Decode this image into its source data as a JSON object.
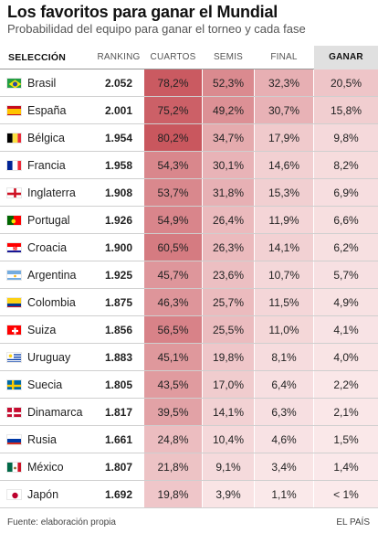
{
  "header": {
    "title": "Los favoritos para ganar el Mundial",
    "subtitle": "Probabilidad del equipo para ganar el torneo y cada fase"
  },
  "columns": {
    "team": "SELECCIÓN",
    "ranking": "RANKING",
    "quarters": "CUARTOS",
    "semis": "SEMIS",
    "final": "FINAL",
    "win": "GANAR"
  },
  "footer": {
    "source": "Fuente: elaboración propia",
    "brand": "EL PAÍS"
  },
  "colors": {
    "heat_high": "#c9575e",
    "heat_low": "#fbebec",
    "header_highlight": "#e0e0e0"
  },
  "chart_data": {
    "type": "table",
    "title": "Los favoritos para ganar el Mundial",
    "subtitle": "Probabilidad del equipo para ganar el torneo y cada fase",
    "columns": [
      "SELECCIÓN",
      "RANKING",
      "CUARTOS",
      "SEMIS",
      "FINAL",
      "GANAR"
    ],
    "rows": [
      {
        "team": "Brasil",
        "flag": "brazil-flag-icon",
        "ranking": "2.052",
        "cuartos": "78,2%",
        "semis": "52,3%",
        "final": "32,3%",
        "ganar": "20,5%",
        "q": 78.2,
        "s": 52.3,
        "f": 32.3,
        "g": 20.5
      },
      {
        "team": "España",
        "flag": "spain-flag-icon",
        "ranking": "2.001",
        "cuartos": "75,2%",
        "semis": "49,2%",
        "final": "30,7%",
        "ganar": "15,8%",
        "q": 75.2,
        "s": 49.2,
        "f": 30.7,
        "g": 15.8
      },
      {
        "team": "Bélgica",
        "flag": "belgium-flag-icon",
        "ranking": "1.954",
        "cuartos": "80,2%",
        "semis": "34,7%",
        "final": "17,9%",
        "ganar": "9,8%",
        "q": 80.2,
        "s": 34.7,
        "f": 17.9,
        "g": 9.8
      },
      {
        "team": "Francia",
        "flag": "france-flag-icon",
        "ranking": "1.958",
        "cuartos": "54,3%",
        "semis": "30,1%",
        "final": "14,6%",
        "ganar": "8,2%",
        "q": 54.3,
        "s": 30.1,
        "f": 14.6,
        "g": 8.2
      },
      {
        "team": "Inglaterra",
        "flag": "england-flag-icon",
        "ranking": "1.908",
        "cuartos": "53,7%",
        "semis": "31,8%",
        "final": "15,3%",
        "ganar": "6,9%",
        "q": 53.7,
        "s": 31.8,
        "f": 15.3,
        "g": 6.9
      },
      {
        "team": "Portugal",
        "flag": "portugal-flag-icon",
        "ranking": "1.926",
        "cuartos": "54,9%",
        "semis": "26,4%",
        "final": "11,9%",
        "ganar": "6,6%",
        "q": 54.9,
        "s": 26.4,
        "f": 11.9,
        "g": 6.6
      },
      {
        "team": "Croacia",
        "flag": "croatia-flag-icon",
        "ranking": "1.900",
        "cuartos": "60,5%",
        "semis": "26,3%",
        "final": "14,1%",
        "ganar": "6,2%",
        "q": 60.5,
        "s": 26.3,
        "f": 14.1,
        "g": 6.2
      },
      {
        "team": "Argentina",
        "flag": "argentina-flag-icon",
        "ranking": "1.925",
        "cuartos": "45,7%",
        "semis": "23,6%",
        "final": "10,7%",
        "ganar": "5,7%",
        "q": 45.7,
        "s": 23.6,
        "f": 10.7,
        "g": 5.7
      },
      {
        "team": "Colombia",
        "flag": "colombia-flag-icon",
        "ranking": "1.875",
        "cuartos": "46,3%",
        "semis": "25,7%",
        "final": "11,5%",
        "ganar": "4,9%",
        "q": 46.3,
        "s": 25.7,
        "f": 11.5,
        "g": 4.9
      },
      {
        "team": "Suiza",
        "flag": "switzerland-flag-icon",
        "ranking": "1.856",
        "cuartos": "56,5%",
        "semis": "25,5%",
        "final": "11,0%",
        "ganar": "4,1%",
        "q": 56.5,
        "s": 25.5,
        "f": 11.0,
        "g": 4.1
      },
      {
        "team": "Uruguay",
        "flag": "uruguay-flag-icon",
        "ranking": "1.883",
        "cuartos": "45,1%",
        "semis": "19,8%",
        "final": "8,1%",
        "ganar": "4,0%",
        "q": 45.1,
        "s": 19.8,
        "f": 8.1,
        "g": 4.0
      },
      {
        "team": "Suecia",
        "flag": "sweden-flag-icon",
        "ranking": "1.805",
        "cuartos": "43,5%",
        "semis": "17,0%",
        "final": "6,4%",
        "ganar": "2,2%",
        "q": 43.5,
        "s": 17.0,
        "f": 6.4,
        "g": 2.2
      },
      {
        "team": "Dinamarca",
        "flag": "denmark-flag-icon",
        "ranking": "1.817",
        "cuartos": "39,5%",
        "semis": "14,1%",
        "final": "6,3%",
        "ganar": "2,1%",
        "q": 39.5,
        "s": 14.1,
        "f": 6.3,
        "g": 2.1
      },
      {
        "team": "Rusia",
        "flag": "russia-flag-icon",
        "ranking": "1.661",
        "cuartos": "24,8%",
        "semis": "10,4%",
        "final": "4,6%",
        "ganar": "1,5%",
        "q": 24.8,
        "s": 10.4,
        "f": 4.6,
        "g": 1.5
      },
      {
        "team": "México",
        "flag": "mexico-flag-icon",
        "ranking": "1.807",
        "cuartos": "21,8%",
        "semis": "9,1%",
        "final": "3,4%",
        "ganar": "1,4%",
        "q": 21.8,
        "s": 9.1,
        "f": 3.4,
        "g": 1.4
      },
      {
        "team": "Japón",
        "flag": "japan-flag-icon",
        "ranking": "1.692",
        "cuartos": "19,8%",
        "semis": "3,9%",
        "final": "1,1%",
        "ganar": "< 1%",
        "q": 19.8,
        "s": 3.9,
        "f": 1.1,
        "g": 0.5
      }
    ]
  }
}
